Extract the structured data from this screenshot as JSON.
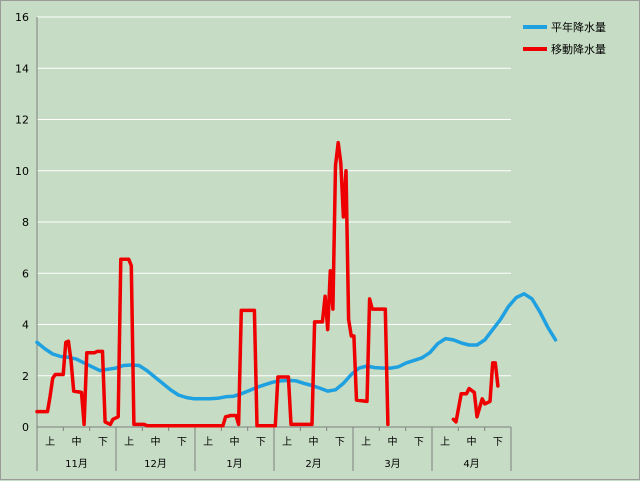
{
  "chart_data": {
    "type": "line",
    "ylim": [
      0,
      16
    ],
    "yticks": [
      "0",
      "2",
      "4",
      "6",
      "8",
      "10",
      "12",
      "14",
      "16"
    ],
    "grid": true,
    "legend_position": "top-right",
    "x_dekads": [
      "上",
      "中",
      "下",
      "上",
      "中",
      "下",
      "上",
      "中",
      "下",
      "上",
      "中",
      "下",
      "上",
      "中",
      "下",
      "上",
      "中",
      "下"
    ],
    "x_months": [
      "11月",
      "12月",
      "1月",
      "2月",
      "3月",
      "4月"
    ],
    "x_start": 0,
    "x_end": 181,
    "colors": {
      "normal": "#1fa0e0",
      "moving": "#ee0000",
      "background": "#c6dcc4",
      "grid": "#ffffff"
    },
    "series": [
      {
        "name": "平年降水量",
        "key": "normal",
        "points": [
          [
            0,
            3.3
          ],
          [
            3,
            3.05
          ],
          [
            6,
            2.85
          ],
          [
            9,
            2.75
          ],
          [
            12,
            2.72
          ],
          [
            15,
            2.65
          ],
          [
            18,
            2.5
          ],
          [
            21,
            2.35
          ],
          [
            24,
            2.2
          ],
          [
            27,
            2.25
          ],
          [
            30,
            2.3
          ],
          [
            33,
            2.4
          ],
          [
            36,
            2.42
          ],
          [
            39,
            2.4
          ],
          [
            42,
            2.2
          ],
          [
            45,
            1.95
          ],
          [
            48,
            1.7
          ],
          [
            51,
            1.45
          ],
          [
            54,
            1.25
          ],
          [
            57,
            1.15
          ],
          [
            60,
            1.1
          ],
          [
            63,
            1.1
          ],
          [
            66,
            1.1
          ],
          [
            69,
            1.12
          ],
          [
            72,
            1.18
          ],
          [
            75,
            1.2
          ],
          [
            78,
            1.3
          ],
          [
            81,
            1.42
          ],
          [
            84,
            1.55
          ],
          [
            87,
            1.65
          ],
          [
            90,
            1.75
          ],
          [
            93,
            1.8
          ],
          [
            96,
            1.82
          ],
          [
            99,
            1.8
          ],
          [
            102,
            1.7
          ],
          [
            105,
            1.62
          ],
          [
            108,
            1.52
          ],
          [
            111,
            1.4
          ],
          [
            114,
            1.45
          ],
          [
            117,
            1.7
          ],
          [
            120,
            2.05
          ],
          [
            123,
            2.3
          ],
          [
            126,
            2.38
          ],
          [
            129,
            2.32
          ],
          [
            132,
            2.3
          ],
          [
            135,
            2.3
          ],
          [
            138,
            2.35
          ],
          [
            141,
            2.5
          ],
          [
            144,
            2.6
          ],
          [
            147,
            2.7
          ],
          [
            150,
            2.9
          ],
          [
            153,
            3.25
          ],
          [
            156,
            3.45
          ],
          [
            159,
            3.4
          ],
          [
            162,
            3.28
          ],
          [
            165,
            3.2
          ],
          [
            168,
            3.2
          ],
          [
            171,
            3.4
          ],
          [
            174,
            3.8
          ],
          [
            177,
            4.2
          ],
          [
            180,
            4.7
          ],
          [
            183,
            5.05
          ],
          [
            186,
            5.2
          ],
          [
            189,
            5.0
          ],
          [
            192,
            4.5
          ],
          [
            195,
            3.9
          ],
          [
            198,
            3.4
          ]
        ]
      },
      {
        "name": "移動降水量",
        "key": "moving",
        "segments": [
          [
            [
              0,
              0.6
            ],
            [
              4,
              0.6
            ],
            [
              5,
              1.2
            ],
            [
              6,
              1.9
            ],
            [
              7,
              2.05
            ],
            [
              10,
              2.05
            ],
            [
              11,
              3.3
            ],
            [
              12,
              3.35
            ],
            [
              13,
              2.6
            ],
            [
              14,
              1.4
            ],
            [
              17,
              1.35
            ],
            [
              18,
              0.1
            ],
            [
              19,
              2.9
            ],
            [
              22,
              2.9
            ],
            [
              23,
              2.95
            ],
            [
              25,
              2.95
            ],
            [
              26,
              0.2
            ],
            [
              28,
              0.1
            ],
            [
              29,
              0.3
            ],
            [
              31,
              0.4
            ],
            [
              32,
              6.55
            ],
            [
              35,
              6.55
            ],
            [
              36,
              6.3
            ],
            [
              37,
              0.1
            ],
            [
              41,
              0.1
            ],
            [
              42,
              0.05
            ],
            [
              57,
              0.05
            ],
            [
              71,
              0.05
            ],
            [
              72,
              0.4
            ],
            [
              74,
              0.45
            ],
            [
              76,
              0.45
            ],
            [
              77,
              0.1
            ],
            [
              78,
              4.55
            ],
            [
              83,
              4.55
            ],
            [
              84,
              0.05
            ],
            [
              91,
              0.05
            ],
            [
              92,
              1.95
            ],
            [
              96,
              1.95
            ],
            [
              97,
              0.1
            ],
            [
              99,
              0.1
            ],
            [
              101,
              0.1
            ],
            [
              105,
              0.1
            ],
            [
              106,
              4.1
            ],
            [
              109,
              4.1
            ],
            [
              110,
              5.1
            ],
            [
              111,
              3.8
            ],
            [
              112,
              6.1
            ],
            [
              113,
              4.6
            ],
            [
              114,
              10.2
            ],
            [
              115,
              11.1
            ],
            [
              116,
              10.3
            ],
            [
              117,
              8.2
            ],
            [
              118,
              10.0
            ],
            [
              119,
              4.2
            ],
            [
              120,
              3.55
            ],
            [
              121,
              3.55
            ],
            [
              122,
              1.05
            ],
            [
              126,
              1.0
            ],
            [
              127,
              5.0
            ],
            [
              128,
              4.6
            ],
            [
              129,
              4.6
            ],
            [
              133,
              4.6
            ],
            [
              134,
              0.1
            ]
          ],
          [
            [
              159,
              0.3
            ],
            [
              160,
              0.2
            ],
            [
              162,
              1.3
            ],
            [
              164,
              1.3
            ],
            [
              165,
              1.5
            ],
            [
              167,
              1.35
            ],
            [
              168,
              0.4
            ],
            [
              170,
              1.1
            ],
            [
              171,
              0.9
            ],
            [
              173,
              1.0
            ],
            [
              174,
              2.5
            ],
            [
              175,
              2.5
            ],
            [
              176,
              1.6
            ]
          ]
        ]
      }
    ]
  }
}
